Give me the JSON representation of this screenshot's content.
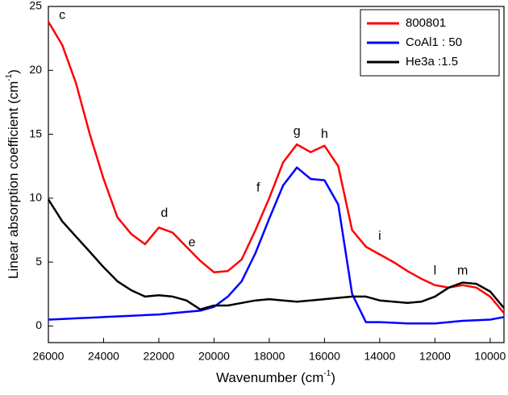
{
  "chart_data": {
    "type": "line",
    "x_label": "Wavenumber (cm",
    "x_label_sup": "-1",
    "x_label_end": ")",
    "y_label": "Linear absorption coefficient (cm",
    "y_label_sup": "-1",
    "y_label_end": ")",
    "x": [
      26000,
      25500,
      25000,
      24500,
      24000,
      23500,
      23000,
      22500,
      22000,
      21500,
      21000,
      20500,
      20000,
      19500,
      19000,
      18500,
      18000,
      17500,
      17000,
      16500,
      16000,
      15500,
      15000,
      14500,
      14000,
      13500,
      13000,
      12500,
      12000,
      11500,
      11000,
      10500,
      10000,
      9500
    ],
    "series": [
      {
        "name": "800801",
        "color": "#ff0000",
        "values": [
          23.8,
          22.0,
          19.0,
          15.0,
          11.5,
          8.5,
          7.2,
          6.4,
          7.7,
          7.3,
          6.2,
          5.1,
          4.2,
          4.3,
          5.2,
          7.5,
          10.0,
          12.8,
          14.2,
          13.6,
          14.1,
          12.5,
          7.5,
          6.2,
          5.6,
          5.0,
          4.3,
          3.7,
          3.2,
          3.0,
          3.2,
          3.0,
          2.3,
          1.0
        ]
      },
      {
        "name": "CoAl1 : 50",
        "color": "#0000ff",
        "values": [
          0.5,
          0.55,
          0.6,
          0.65,
          0.7,
          0.75,
          0.8,
          0.85,
          0.9,
          1.0,
          1.1,
          1.2,
          1.5,
          2.3,
          3.5,
          5.7,
          8.4,
          11.0,
          12.4,
          11.5,
          11.4,
          9.5,
          2.5,
          0.3,
          0.3,
          0.25,
          0.2,
          0.2,
          0.2,
          0.3,
          0.4,
          0.45,
          0.5,
          0.7
        ]
      },
      {
        "name": "He3a :1.5",
        "color": "#000000",
        "values": [
          9.9,
          8.2,
          7.0,
          5.8,
          4.6,
          3.5,
          2.8,
          2.3,
          2.4,
          2.3,
          2.0,
          1.3,
          1.6,
          1.6,
          1.8,
          2.0,
          2.1,
          2.0,
          1.9,
          2.0,
          2.1,
          2.2,
          2.3,
          2.3,
          2.0,
          1.9,
          1.8,
          1.9,
          2.3,
          3.0,
          3.4,
          3.3,
          2.7,
          1.4
        ]
      }
    ],
    "xlim": [
      26000,
      9500
    ],
    "xticks": [
      26000,
      24000,
      22000,
      20000,
      18000,
      16000,
      14000,
      12000,
      10000
    ],
    "ylim": [
      -1.3,
      25
    ],
    "yticks": [
      0,
      5,
      10,
      15,
      20,
      25
    ],
    "grid": false,
    "legend": "upper right",
    "annotations": [
      {
        "text": "c",
        "x": 25500,
        "y": 24.3
      },
      {
        "text": "d",
        "x": 21800,
        "y": 8.8
      },
      {
        "text": "e",
        "x": 20800,
        "y": 6.5
      },
      {
        "text": "f",
        "x": 18400,
        "y": 10.8
      },
      {
        "text": "g",
        "x": 17000,
        "y": 15.2
      },
      {
        "text": "h",
        "x": 16000,
        "y": 15.0
      },
      {
        "text": "i",
        "x": 14000,
        "y": 7.0
      },
      {
        "text": "l",
        "x": 12000,
        "y": 4.3
      },
      {
        "text": "m",
        "x": 11000,
        "y": 4.3
      }
    ]
  }
}
